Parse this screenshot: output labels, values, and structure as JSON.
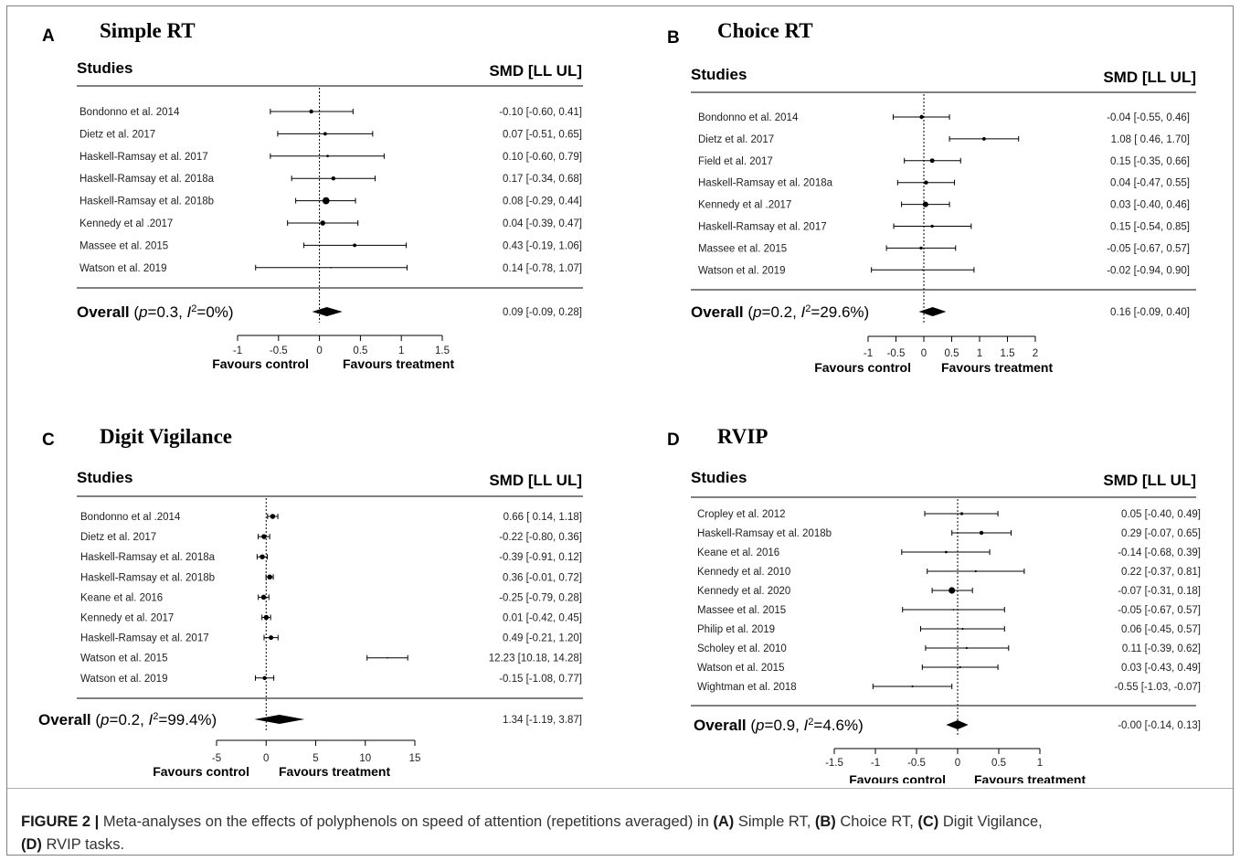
{
  "figure_caption": {
    "label": "FIGURE 2 |",
    "text_1": " Meta-analyses on the effects of polyphenols on speed of attention (repetitions averaged) in ",
    "a": "(A)",
    "a_text": " Simple RT, ",
    "b": "(B)",
    "b_text": " Choice RT, ",
    "c": "(C)",
    "c_text": " Digit Vigilance, ",
    "d": "(D)",
    "d_text": " RVIP tasks."
  },
  "chart_data": [
    {
      "type": "forest",
      "panel_letter": "A",
      "title": "Simple RT",
      "studies_header": "Studies",
      "effect_header": "SMD [LL UL]",
      "favours_left": "Favours control",
      "favours_right": "Favours treatment",
      "x_ticks": [
        -1,
        -0.5,
        0,
        0.5,
        1,
        1.5
      ],
      "xlim": [
        -1,
        1.5
      ],
      "studies": [
        {
          "name": "Bondonno et al. 2014",
          "smd": -0.1,
          "ll": -0.6,
          "ul": 0.41,
          "ci_text": "-0.10 [-0.60, 0.41]",
          "weight": 4
        },
        {
          "name": "Dietz et al. 2017",
          "smd": 0.07,
          "ll": -0.51,
          "ul": 0.65,
          "ci_text": "0.07 [-0.51, 0.65]",
          "weight": 3.5
        },
        {
          "name": "Haskell-Ramsay et al. 2017",
          "smd": 0.1,
          "ll": -0.6,
          "ul": 0.79,
          "ci_text": "0.10 [-0.60, 0.79]",
          "weight": 2.5
        },
        {
          "name": "Haskell-Ramsay et al. 2018a",
          "smd": 0.17,
          "ll": -0.34,
          "ul": 0.68,
          "ci_text": "0.17 [-0.34, 0.68]",
          "weight": 4
        },
        {
          "name": "Haskell-Ramsay et al. 2018b",
          "smd": 0.08,
          "ll": -0.29,
          "ul": 0.44,
          "ci_text": "0.08 [-0.29, 0.44]",
          "weight": 7
        },
        {
          "name": "Kennedy et al .2017",
          "smd": 0.04,
          "ll": -0.39,
          "ul": 0.47,
          "ci_text": "0.04 [-0.39, 0.47]",
          "weight": 5
        },
        {
          "name": "Massee et al. 2015",
          "smd": 0.43,
          "ll": -0.19,
          "ul": 1.06,
          "ci_text": "0.43 [-0.19, 1.06]",
          "weight": 3.5
        },
        {
          "name": "Watson et al. 2019",
          "smd": 0.14,
          "ll": -0.78,
          "ul": 1.07,
          "ci_text": "0.14 [-0.78, 1.07]",
          "weight": 1.5
        }
      ],
      "overall": {
        "label": "Overall",
        "p_text": "p",
        "p_value": "=0.3, ",
        "i2_text": "I",
        "i2_value": "=0%)",
        "smd": 0.09,
        "ll": -0.09,
        "ul": 0.28,
        "ci_text": "0.09 [-0.09, 0.28]"
      }
    },
    {
      "type": "forest",
      "panel_letter": "B",
      "title": "Choice RT",
      "studies_header": "Studies",
      "effect_header": "SMD [LL UL]",
      "favours_left": "Favours control",
      "favours_right": "Favours treatment",
      "x_ticks": [
        -1,
        -0.5,
        0,
        0.5,
        1,
        1.5,
        2
      ],
      "xlim": [
        -1,
        2
      ],
      "studies": [
        {
          "name": "Bondonno et al. 2014",
          "smd": -0.04,
          "ll": -0.55,
          "ul": 0.46,
          "ci_text": "-0.04 [-0.55, 0.46]",
          "weight": 4
        },
        {
          "name": "Dietz et al. 2017",
          "smd": 1.08,
          "ll": 0.46,
          "ul": 1.7,
          "ci_text": "1.08 [ 0.46, 1.70]",
          "weight": 3.5
        },
        {
          "name": "Field et al. 2017",
          "smd": 0.15,
          "ll": -0.35,
          "ul": 0.66,
          "ci_text": "0.15 [-0.35, 0.66]",
          "weight": 4.5
        },
        {
          "name": "Haskell-Ramsay et al. 2018a",
          "smd": 0.04,
          "ll": -0.47,
          "ul": 0.55,
          "ci_text": "0.04 [-0.47, 0.55]",
          "weight": 4
        },
        {
          "name": "Kennedy et al .2017",
          "smd": 0.03,
          "ll": -0.4,
          "ul": 0.46,
          "ci_text": "0.03 [-0.40, 0.46]",
          "weight": 5.5
        },
        {
          "name": "Haskell-Ramsay et al. 2017",
          "smd": 0.15,
          "ll": -0.54,
          "ul": 0.85,
          "ci_text": "0.15 [-0.54, 0.85]",
          "weight": 3
        },
        {
          "name": "Massee et al. 2015",
          "smd": -0.05,
          "ll": -0.67,
          "ul": 0.57,
          "ci_text": "-0.05 [-0.67, 0.57]",
          "weight": 3
        },
        {
          "name": "Watson et al. 2019",
          "smd": -0.02,
          "ll": -0.94,
          "ul": 0.9,
          "ci_text": "-0.02 [-0.94, 0.90]",
          "weight": 1.5
        }
      ],
      "overall": {
        "label": "Overall",
        "p_text": "p",
        "p_value": "=0.2, ",
        "i2_text": "I",
        "i2_value": "=29.6%)",
        "smd": 0.16,
        "ll": -0.09,
        "ul": 0.4,
        "ci_text": "0.16 [-0.09, 0.40]"
      }
    },
    {
      "type": "forest",
      "panel_letter": "C",
      "title": "Digit Vigilance",
      "studies_header": "Studies",
      "effect_header": "SMD [LL UL]",
      "favours_left": "Favours control",
      "favours_right": "Favours treatment",
      "x_ticks": [
        -5,
        0,
        5,
        10,
        15
      ],
      "xlim": [
        -5,
        15
      ],
      "studies": [
        {
          "name": "Bondonno et al .2014",
          "smd": 0.66,
          "ll": 0.14,
          "ul": 1.18,
          "ci_text": "0.66 [ 0.14, 1.18]",
          "weight": 5
        },
        {
          "name": "Dietz et al. 2017",
          "smd": -0.22,
          "ll": -0.8,
          "ul": 0.36,
          "ci_text": "-0.22 [-0.80, 0.36]",
          "weight": 5
        },
        {
          "name": "Haskell-Ramsay et al. 2018a",
          "smd": -0.39,
          "ll": -0.91,
          "ul": 0.12,
          "ci_text": "-0.39 [-0.91, 0.12]",
          "weight": 5
        },
        {
          "name": "Haskell-Ramsay et al. 2018b",
          "smd": 0.36,
          "ll": -0.01,
          "ul": 0.72,
          "ci_text": "0.36 [-0.01, 0.72]",
          "weight": 5
        },
        {
          "name": "Keane et al. 2016",
          "smd": -0.25,
          "ll": -0.79,
          "ul": 0.28,
          "ci_text": "-0.25 [-0.79, 0.28]",
          "weight": 5
        },
        {
          "name": "Kennedy et al. 2017",
          "smd": 0.01,
          "ll": -0.42,
          "ul": 0.45,
          "ci_text": "0.01 [-0.42, 0.45]",
          "weight": 5
        },
        {
          "name": "Haskell-Ramsay et al. 2017",
          "smd": 0.49,
          "ll": -0.21,
          "ul": 1.2,
          "ci_text": "0.49 [-0.21, 1.20]",
          "weight": 4.5
        },
        {
          "name": "Watson et al. 2015",
          "smd": 12.23,
          "ll": 10.18,
          "ul": 14.28,
          "ci_text": "12.23 [10.18, 14.28]",
          "weight": 0.8
        },
        {
          "name": "Watson et al. 2019",
          "smd": -0.15,
          "ll": -1.08,
          "ul": 0.77,
          "ci_text": "-0.15 [-1.08, 0.77]",
          "weight": 4
        }
      ],
      "overall": {
        "label": "Overall",
        "p_text": "p",
        "p_value": "=0.2, ",
        "i2_text": "I",
        "i2_value": "=99.4%)",
        "smd": 1.34,
        "ll": -1.19,
        "ul": 3.87,
        "ci_text": "1.34 [-1.19, 3.87]"
      }
    },
    {
      "type": "forest",
      "panel_letter": "D",
      "title": "RVIP",
      "studies_header": "Studies",
      "effect_header": "SMD [LL UL]",
      "favours_left": "Favours control",
      "favours_right": "Favours treatment",
      "x_ticks": [
        -1.5,
        -1,
        -0.5,
        0,
        0.5,
        1
      ],
      "xlim": [
        -1.5,
        1
      ],
      "studies": [
        {
          "name": "Cropley et al. 2012",
          "smd": 0.05,
          "ll": -0.4,
          "ul": 0.49,
          "ci_text": "0.05 [-0.40, 0.49]",
          "weight": 3
        },
        {
          "name": "Haskell-Ramsay et al. 2018b",
          "smd": 0.29,
          "ll": -0.07,
          "ul": 0.65,
          "ci_text": "0.29 [-0.07, 0.65]",
          "weight": 4
        },
        {
          "name": "Keane et al. 2016",
          "smd": -0.14,
          "ll": -0.68,
          "ul": 0.39,
          "ci_text": "-0.14 [-0.68, 0.39]",
          "weight": 2.5
        },
        {
          "name": "Kennedy et al. 2010",
          "smd": 0.22,
          "ll": -0.37,
          "ul": 0.81,
          "ci_text": "0.22 [-0.37, 0.81]",
          "weight": 2
        },
        {
          "name": "Kennedy et al. 2020",
          "smd": -0.07,
          "ll": -0.31,
          "ul": 0.18,
          "ci_text": "-0.07 [-0.31, 0.18]",
          "weight": 6.5
        },
        {
          "name": "Massee et al. 2015",
          "smd": -0.05,
          "ll": -0.67,
          "ul": 0.57,
          "ci_text": "-0.05 [-0.67, 0.57]",
          "weight": 1.5
        },
        {
          "name": "Philip et al. 2019",
          "smd": 0.06,
          "ll": -0.45,
          "ul": 0.57,
          "ci_text": "0.06 [-0.45, 0.57]",
          "weight": 2
        },
        {
          "name": "Scholey et al. 2010",
          "smd": 0.11,
          "ll": -0.39,
          "ul": 0.62,
          "ci_text": "0.11 [-0.39, 0.62]",
          "weight": 2
        },
        {
          "name": "Watson et al. 2015",
          "smd": 0.03,
          "ll": -0.43,
          "ul": 0.49,
          "ci_text": "0.03 [-0.43, 0.49]",
          "weight": 2
        },
        {
          "name": "Wightman et al. 2018",
          "smd": -0.55,
          "ll": -1.03,
          "ul": -0.07,
          "ci_text": "-0.55 [-1.03, -0.07]",
          "weight": 2
        }
      ],
      "overall": {
        "label": "Overall",
        "p_text": "p",
        "p_value": "=0.9, ",
        "i2_text": "I",
        "i2_value": "=4.6%)",
        "smd": -0.0,
        "ll": -0.14,
        "ul": 0.13,
        "ci_text": "-0.00 [-0.14, 0.13]"
      }
    }
  ]
}
